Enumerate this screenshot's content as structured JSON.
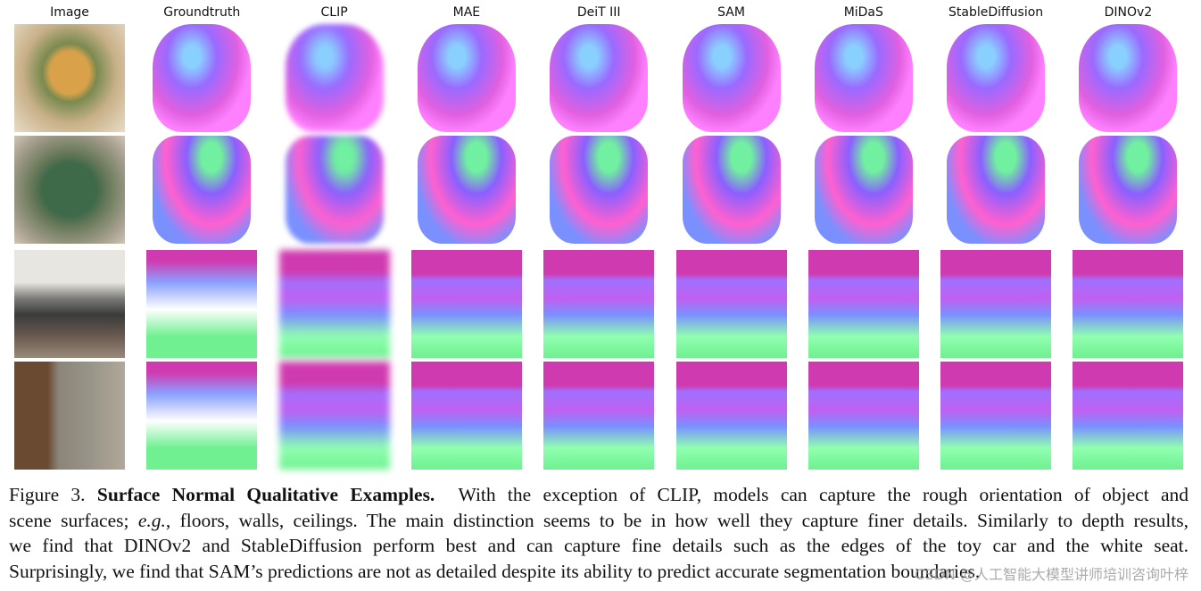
{
  "figure": {
    "columns": [
      "Image",
      "Groundtruth",
      "CLIP",
      "MAE",
      "DeiT III",
      "SAM",
      "MiDaS",
      "StableDiffusion",
      "DINOv2"
    ]
  },
  "caption": {
    "label": "Figure 3.",
    "title": "Surface Normal Qualitative Examples.",
    "line1_rest": "With the exception of CLIP, models can capture the rough orientation of object and",
    "line2_start": "scene surfaces;",
    "eg": "e.g.",
    "line2_rest": ", floors, walls, ceilings. The main distinction seems to be in how well they capture finer details. Similarly to depth results,",
    "line3": "we find that DINOv2 and StableDiffusion perform best and can capture fine details such as the edges of the toy car and the white seat.",
    "line4": "Surprisingly, we find that SAM’s predictions are not as detailed despite its ability to predict accurate segmentation boundaries."
  },
  "watermark": "CSDN @人工智能大模型讲师培训咨询叶梓"
}
